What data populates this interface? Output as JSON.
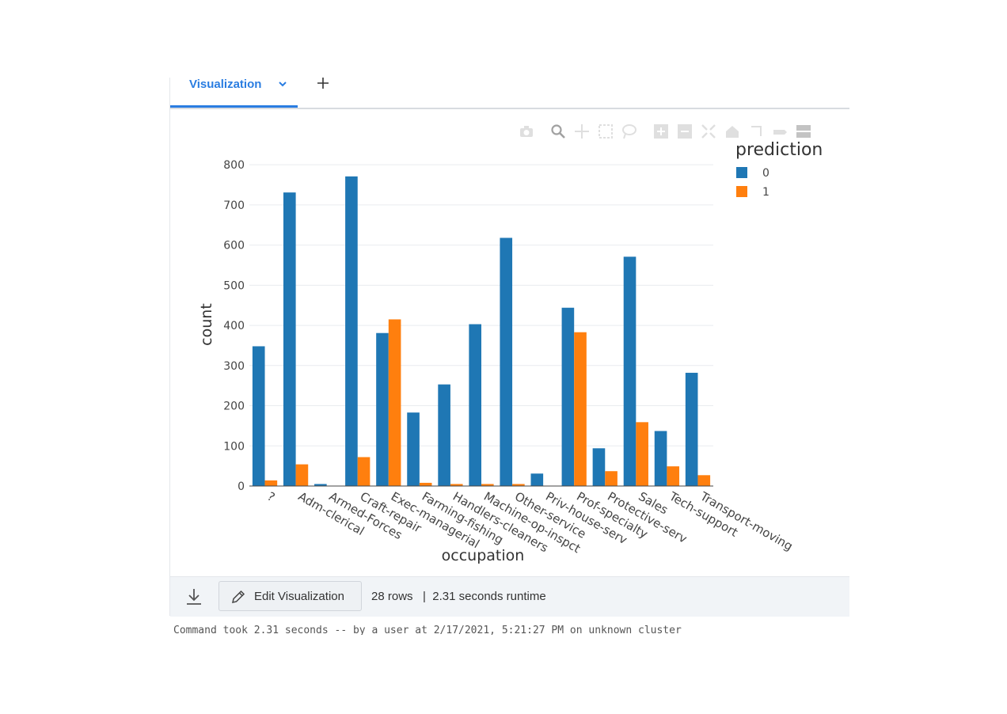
{
  "tabs": {
    "active_label": "Visualization",
    "add_label": "+"
  },
  "modebar": {
    "icons": [
      "camera-icon",
      "zoom-icon",
      "pan-icon",
      "box-select-icon",
      "lasso-icon",
      "zoom-in-icon",
      "zoom-out-icon",
      "autoscale-icon",
      "reset-axes-icon",
      "spike-lines-icon",
      "hover-closest-icon",
      "hover-compare-icon"
    ]
  },
  "colors": {
    "series0": "#1f77b4",
    "series1": "#ff7f0e",
    "accent": "#2a7de1",
    "grid": "#e9ecef"
  },
  "chart_data": {
    "type": "bar",
    "xlabel": "occupation",
    "ylabel": "count",
    "ylim": [
      0,
      820
    ],
    "yticks": [
      0,
      100,
      200,
      300,
      400,
      500,
      600,
      700,
      800
    ],
    "legend_title": "prediction",
    "legend_position": "top-right",
    "grid": true,
    "categories": [
      "?",
      "Adm-clerical",
      "Armed-Forces",
      "Craft-repair",
      "Exec-managerial",
      "Farming-fishing",
      "Handlers-cleaners",
      "Machine-op-inspct",
      "Other-service",
      "Priv-house-serv",
      "Prof-specialty",
      "Protective-serv",
      "Sales",
      "Tech-support",
      "Transport-moving"
    ],
    "series": [
      {
        "name": "0",
        "values": [
          348,
          731,
          5,
          771,
          381,
          183,
          253,
          403,
          618,
          31,
          444,
          94,
          571,
          137,
          282
        ]
      },
      {
        "name": "1",
        "values": [
          14,
          54,
          0,
          72,
          415,
          8,
          5,
          5,
          5,
          1,
          383,
          37,
          159,
          49,
          27
        ]
      }
    ]
  },
  "footer": {
    "edit_label": "Edit Visualization",
    "rows_label": "28 rows",
    "runtime_label": "|  2.31 seconds runtime"
  },
  "command_text": "Command took 2.31 seconds -- by a user at 2/17/2021, 5:21:27 PM on unknown cluster"
}
